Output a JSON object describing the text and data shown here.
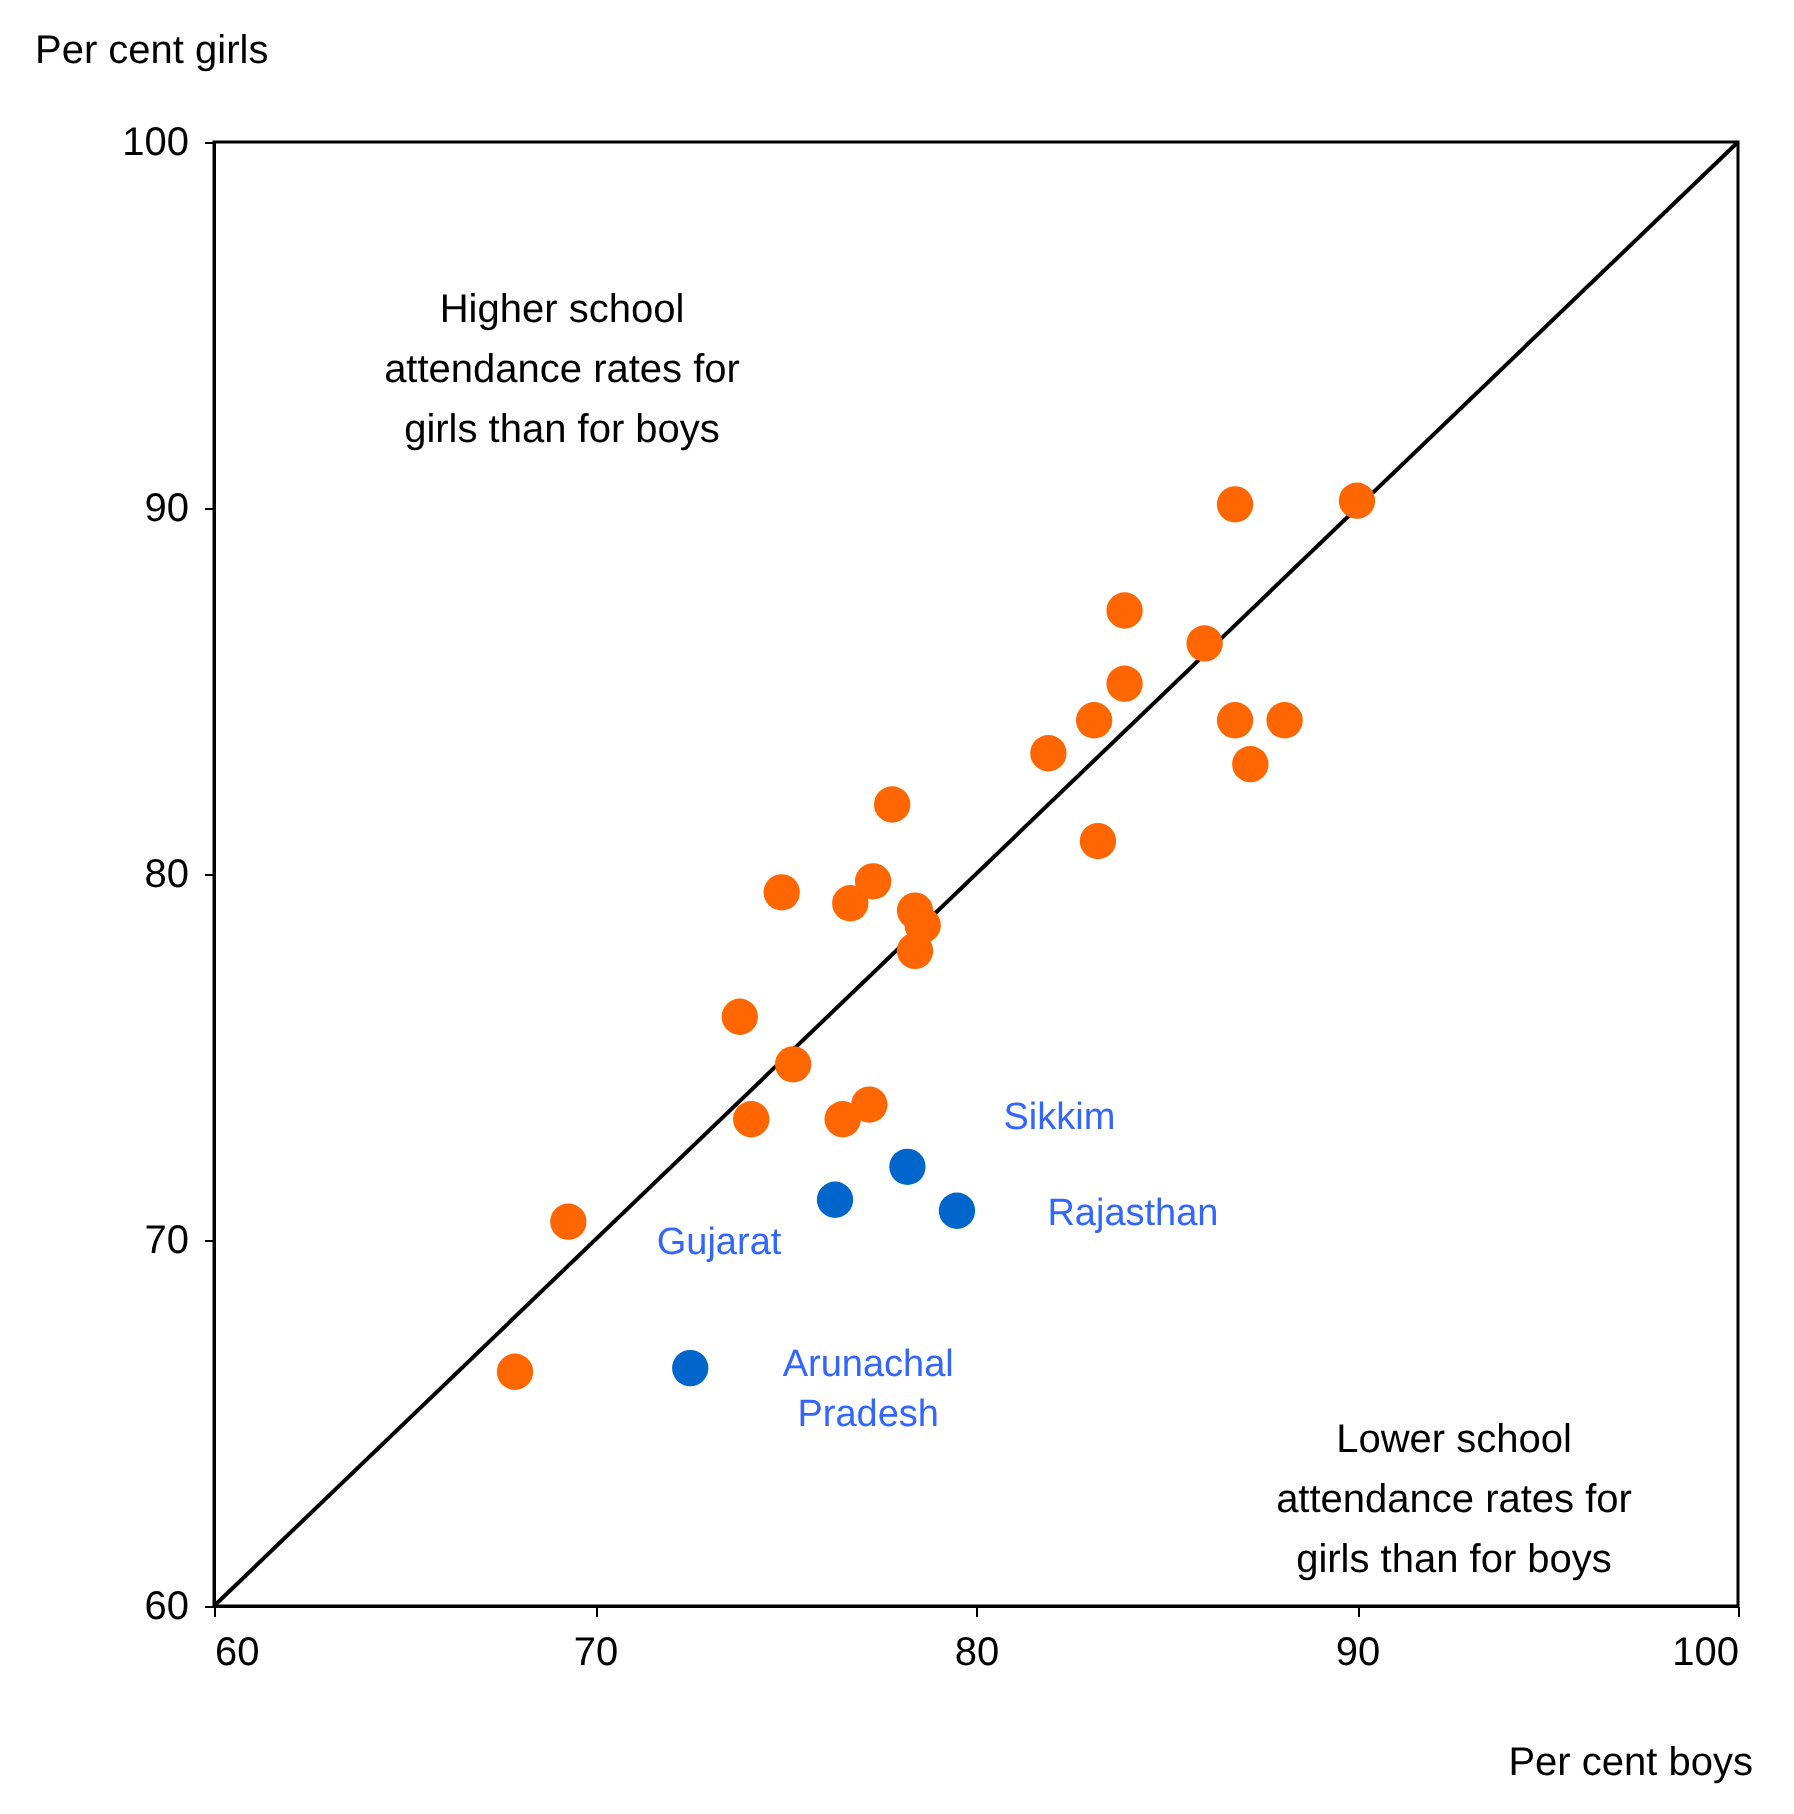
{
  "chart_data": {
    "type": "scatter",
    "xlabel": "Per cent boys",
    "ylabel": "Per cent girls",
    "xlim": [
      60,
      100
    ],
    "ylim": [
      60,
      100
    ],
    "xticks": [
      60,
      70,
      80,
      90,
      100
    ],
    "yticks": [
      60,
      70,
      80,
      90,
      100
    ],
    "marker": "circle",
    "series": [
      {
        "type": "line",
        "color": "#000000",
        "x": [
          60,
          100
        ],
        "values": [
          60,
          100
        ],
        "marker": "none"
      },
      {
        "color": "#ff6600",
        "x": [
          67.9,
          69.3,
          74.1,
          73.8,
          75.2,
          74.9,
          76.7,
          77.3,
          77.8,
          78.4,
          78.6,
          78.4,
          76.5,
          77.2,
          81.9,
          83.1,
          83.2,
          83.9,
          83.9,
          86.0,
          86.8,
          86.8,
          87.2,
          88.1,
          90.0
        ],
        "values": [
          66.4,
          70.5,
          73.3,
          76.1,
          74.8,
          79.5,
          79.2,
          79.8,
          81.9,
          79.0,
          78.6,
          77.9,
          73.3,
          73.7,
          83.3,
          84.2,
          80.9,
          85.2,
          87.2,
          86.3,
          90.1,
          84.2,
          83.0,
          84.2,
          90.2
        ]
      },
      {
        "color": "#0066cc",
        "x": [
          72.5,
          76.3,
          78.2,
          79.5
        ],
        "values": [
          66.5,
          71.1,
          72.0,
          70.8
        ]
      }
    ],
    "annotations": [
      "Higher school\nattendance rates for\ngirls than for boys",
      "Lower school\nattendance rates for\ngirls than for boys",
      {
        "text": "Sikkim",
        "x": 78.2,
        "y": 72.0
      },
      {
        "text": "Rajasthan",
        "x": 79.5,
        "y": 70.8
      },
      {
        "text": "Gujarat",
        "x": 76.3,
        "y": 71.1
      },
      {
        "text": "Arunachal\nPradesh",
        "x": 72.5,
        "y": 66.5
      }
    ]
  }
}
